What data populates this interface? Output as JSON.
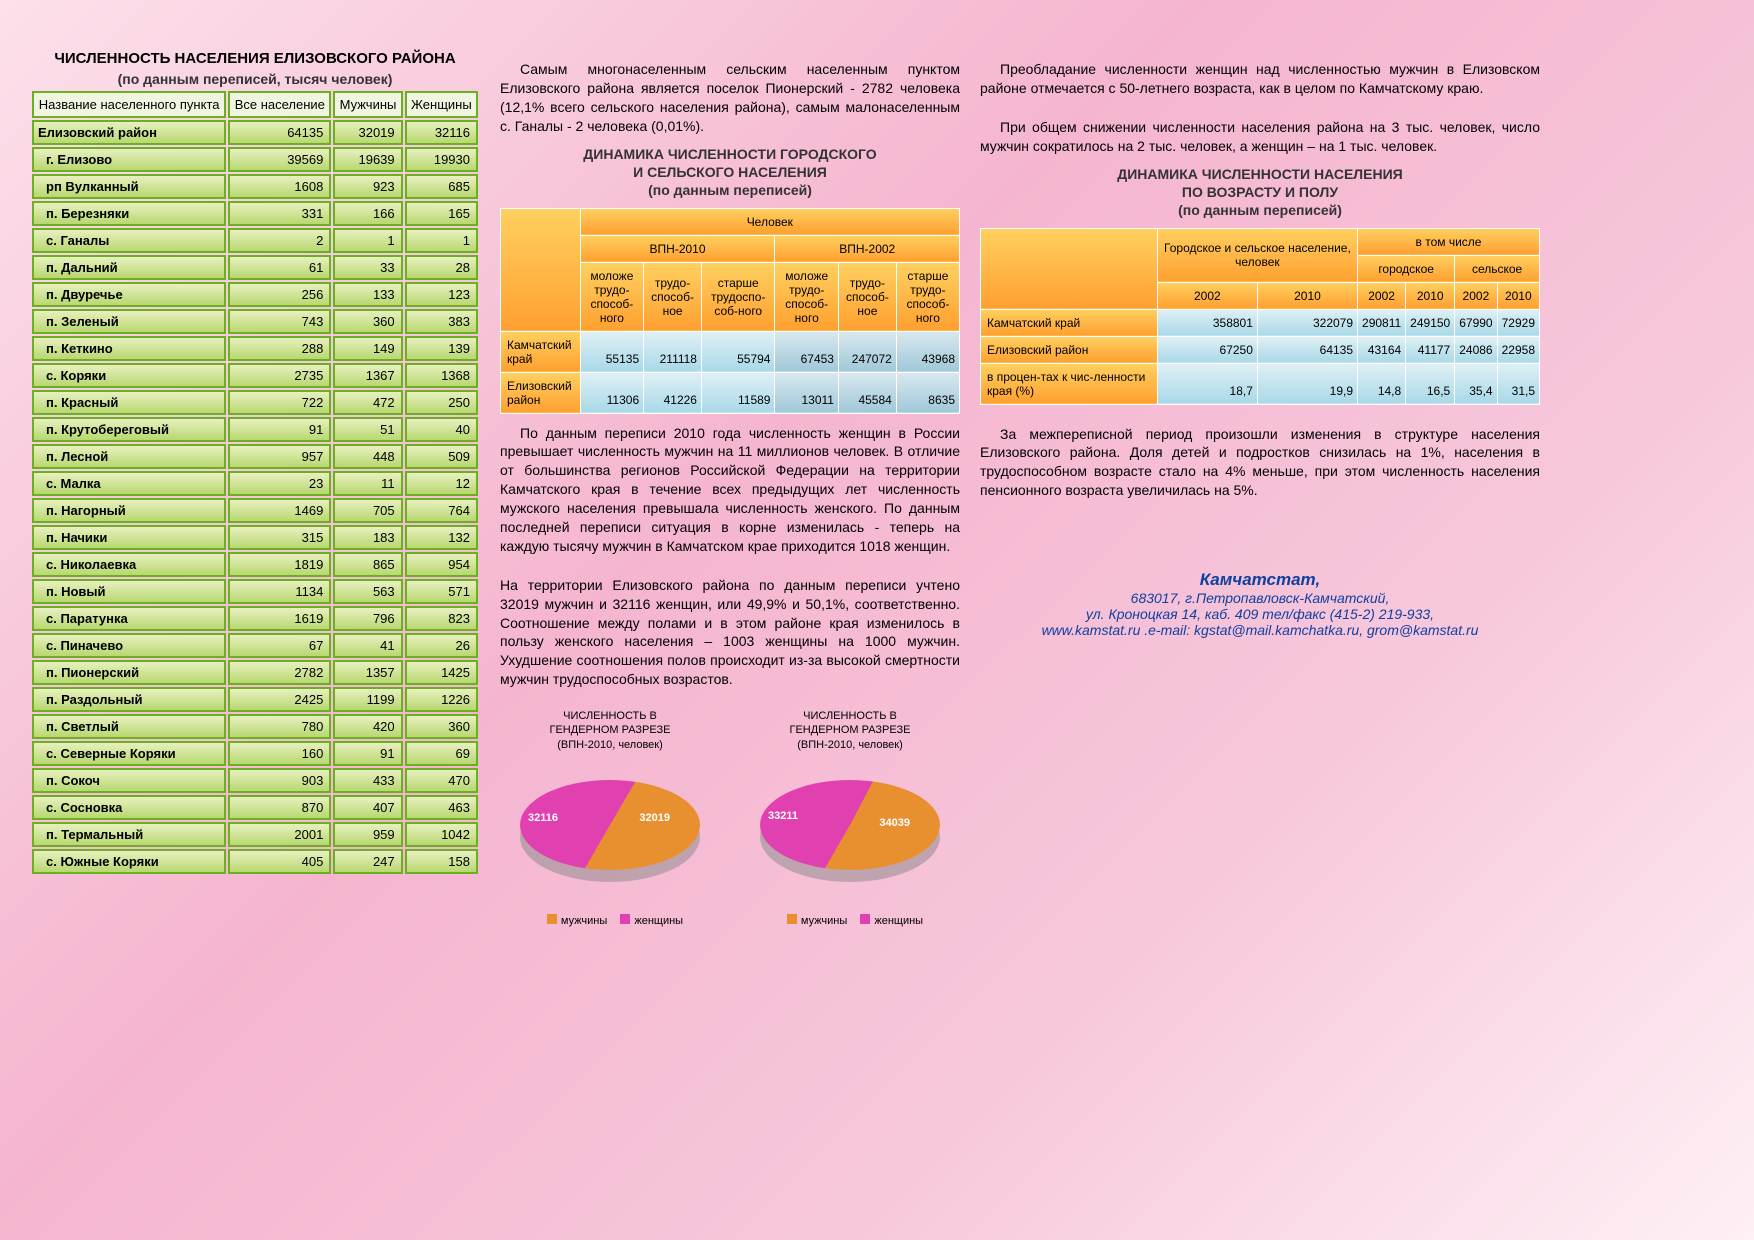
{
  "col1": {
    "title": "ЧИСЛЕННОСТЬ НАСЕЛЕНИЯ ЕЛИЗОВСКОГО РАЙОНА",
    "subtitle": "(по данным переписей, тысяч человек)",
    "headers": [
      "Название населенного пункта",
      "Все население",
      "Мужчины",
      "Женщины"
    ],
    "rows": [
      [
        "Елизовский район",
        "64135",
        "32019",
        "32116"
      ],
      [
        "г. Елизово",
        "39569",
        "19639",
        "19930"
      ],
      [
        "рп Вулканный",
        "1608",
        "923",
        "685"
      ],
      [
        "п. Березняки",
        "331",
        "166",
        "165"
      ],
      [
        "с. Ганалы",
        "2",
        "1",
        "1"
      ],
      [
        "п. Дальний",
        "61",
        "33",
        "28"
      ],
      [
        "п. Двуречье",
        "256",
        "133",
        "123"
      ],
      [
        "п. Зеленый",
        "743",
        "360",
        "383"
      ],
      [
        "п. Кеткино",
        "288",
        "149",
        "139"
      ],
      [
        "с. Коряки",
        "2735",
        "1367",
        "1368"
      ],
      [
        "п. Красный",
        "722",
        "472",
        "250"
      ],
      [
        "п. Крутобереговый",
        "91",
        "51",
        "40"
      ],
      [
        "п. Лесной",
        "957",
        "448",
        "509"
      ],
      [
        "с. Малка",
        "23",
        "11",
        "12"
      ],
      [
        "п. Нагорный",
        "1469",
        "705",
        "764"
      ],
      [
        "п. Начики",
        "315",
        "183",
        "132"
      ],
      [
        "с. Николаевка",
        "1819",
        "865",
        "954"
      ],
      [
        "п. Новый",
        "1134",
        "563",
        "571"
      ],
      [
        "с. Паратунка",
        "1619",
        "796",
        "823"
      ],
      [
        "с. Пиначево",
        "67",
        "41",
        "26"
      ],
      [
        "п. Пионерский",
        "2782",
        "1357",
        "1425"
      ],
      [
        "п. Раздольный",
        "2425",
        "1199",
        "1226"
      ],
      [
        "п. Светлый",
        "780",
        "420",
        "360"
      ],
      [
        "с. Северные Коряки",
        "160",
        "91",
        "69"
      ],
      [
        "п. Сокоч",
        "903",
        "433",
        "470"
      ],
      [
        "с. Сосновка",
        "870",
        "407",
        "463"
      ],
      [
        "п. Термальный",
        "2001",
        "959",
        "1042"
      ],
      [
        "с. Южные Коряки",
        "405",
        "247",
        "158"
      ]
    ]
  },
  "col2": {
    "p1": "Самым многонаселенным сельским населенным пунктом Елизовского района является поселок Пионерский - 2782 человека (12,1% всего сельского населения района), самым малонаселенным с. Ганалы - 2 человека (0,01%).",
    "t2title1": "ДИНАМИКА ЧИСЛЕННОСТИ ГОРОДСКОГО",
    "t2title2": "И СЕЛЬСКОГО НАСЕЛЕНИЯ",
    "t2title3": "(по данным переписей)",
    "t2": {
      "toph": "Человек",
      "c2010": "ВПН-2010",
      "c2002": "ВПН-2002",
      "cols": [
        "моложе трудо-способ-ного",
        "трудо-способ-ное",
        "старше трудоспо-соб-ного",
        "моложе трудо-способ-ного",
        "трудо-способ-ное",
        "старше трудо-способ-ного"
      ],
      "rows": [
        [
          "Камчатский край",
          "55135",
          "211118",
          "55794",
          "67453",
          "247072",
          "43968"
        ],
        [
          "Елизовский район",
          "11306",
          "41226",
          "11589",
          "13011",
          "45584",
          "8635"
        ]
      ]
    },
    "p2": "По данным переписи 2010 года численность женщин в России превышает численность мужчин на 11 миллионов человек. В отличие от большинства регионов Российской Федерации на территории Камчатского края в течение всех предыдущих лет численность мужского населения превышала численность женского. По данным последней переписи ситуация в корне изменилась - теперь на каждую тысячу мужчин в Камчатском крае приходится 1018 женщин.",
    "p3": "На территории Елизовского района по данным переписи учтено 32019 мужчин и 32116 женщин, или 49,9% и 50,1%, соответственно. Соотношение между полами и в этом районе края изменилось в пользу женского населения – 1003 женщины на 1000 мужчин. Ухудшение соотношения полов происходит из-за высокой смертности мужчин трудоспособных возрастов.",
    "pie1": {
      "title1": "ЧИСЛЕННОСТЬ В",
      "title2": "ГЕНДЕРНОМ РАЗРЕЗЕ",
      "title3": "(ВПН-2010, человек)",
      "men": "32019",
      "women": "32116",
      "color_men": "#e89030",
      "color_women": "#e040b0"
    },
    "pie2": {
      "title1": "ЧИСЛЕННОСТЬ В",
      "title2": "ГЕНДЕРНОМ РАЗРЕЗЕ",
      "title3": "(ВПН-2010, человек)",
      "men": "34039",
      "women": "33211",
      "color_men": "#e89030",
      "color_women": "#e040b0"
    },
    "legend": {
      "men": "мужчины",
      "women": "женщины"
    }
  },
  "col3": {
    "p1": "Преобладание численности женщин над численностью мужчин в Елизовском районе отмечается с 50-летнего возраста, как в целом по Камчатскому краю.",
    "p2": "При общем снижении численности населения района на 3 тыс. человек, число мужчин сократилось на 2 тыс. человек, а женщин – на 1 тыс. человек.",
    "t3title1": "ДИНАМИКА ЧИСЛЕННОСТИ НАСЕЛЕНИЯ",
    "t3title2": "ПО ВОЗРАСТУ И ПОЛУ",
    "t3title3": "(по данным переписей)",
    "t3": {
      "h1": "Городское и сельское население, человек",
      "h2": "в том числе",
      "h2a": "городское",
      "h2b": "сельское",
      "years": [
        "2002",
        "2010",
        "2002",
        "2010",
        "2002",
        "2010"
      ],
      "rows": [
        [
          "Камчатский край",
          "358801",
          "322079",
          "290811",
          "249150",
          "67990",
          "72929"
        ],
        [
          "Елизовский район",
          "67250",
          "64135",
          "43164",
          "41177",
          "24086",
          "22958"
        ],
        [
          "в процен-тах к чис-ленности края (%)",
          "18,7",
          "19,9",
          "14,8",
          "16,5",
          "35,4",
          "31,5"
        ]
      ]
    },
    "p3": "За межпереписной период произошли изменения в структуре населения Елизовского района. Доля детей и подростков снизилась на 1%, населения в трудоспособном возрасте стало на 4% меньше, при этом численность населения пенсионного возраста увеличилась на 5%.",
    "footer": {
      "name": "Камчатстат,",
      "addr1": "683017, г.Петропавловск-Камчатский,",
      "addr2": "ул. Кроноцкая 14, каб. 409 тел/факс (415-2) 219-933,",
      "addr3": "www.kamstat.ru .e-mail: kgstat@mail.kamchatka.ru, grom@kamstat.ru"
    }
  }
}
